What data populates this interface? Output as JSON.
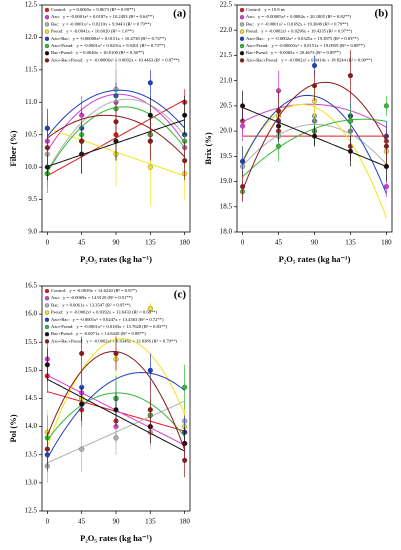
{
  "chart_data": [
    {
      "type": "scatter",
      "panel": "(a)",
      "ylabel": "Fiber (%)",
      "xlabel": "P₂O₅ rates (kg ha⁻¹)",
      "x": [
        0,
        45,
        90,
        135,
        180
      ],
      "xlim": [
        -7,
        187
      ],
      "xticks": [
        0,
        45,
        90,
        135,
        180
      ],
      "ylim": [
        9,
        12.5
      ],
      "yticks": [
        {
          "value": 9,
          "label": "9.0"
        },
        9.5,
        {
          "value": 10,
          "label": "10.0"
        },
        10.5,
        {
          "value": 11,
          "label": "11.0"
        },
        11.5,
        {
          "value": 12,
          "label": "12.0"
        },
        12.5
      ],
      "series": [
        {
          "name": "Control:",
          "equation": "y = 0.0065x + 9.8673 (R² = 0.99**)",
          "fit": [
            0.0065,
            9.8673
          ],
          "color": "#e31a1c",
          "values": [
            9.9,
            10.2,
            10.5,
            10.5,
            11.0
          ],
          "errors": [
            0.2,
            0.3,
            0.4,
            0.3,
            0.2
          ]
        },
        {
          "name": "Azo:",
          "equation": "y = -0.0001x² + 0.0187x + 10.2493 (R² = 0.64**)",
          "fit": [
            -0.0001,
            0.0187,
            10.2493
          ],
          "color": "#d63cd6",
          "values": [
            10.4,
            10.8,
            11.0,
            10.5,
            10.3
          ],
          "errors": [
            0.4,
            0.3,
            0.5,
            0.4,
            0.3
          ]
        },
        {
          "name": "Bac:",
          "equation": "y = -0.0001x² + 0.0210x + 9.9443 (R² = 0.79**)",
          "fit": [
            -0.0001,
            0.021,
            9.9443
          ],
          "color": "#b0b0b0",
          "values": [
            10.2,
            10.4,
            11.2,
            10.4,
            10.5
          ],
          "errors": [
            0.3,
            0.4,
            0.5,
            0.3,
            0.3
          ]
        },
        {
          "name": "Pseud:",
          "equation": "y = -0.0041x + 10.6020 (R² = 1.0**)",
          "fit": [
            -0.0041,
            10.602
          ],
          "color": "#f2e41c",
          "values": [
            10.6,
            10.4,
            10.2,
            10.0,
            9.9
          ],
          "errors": [
            0.3,
            0.4,
            0.5,
            0.6,
            0.4
          ]
        },
        {
          "name": "Azo+Bac:",
          "equation": "y = -0.00008x² + 0.0151x + 10.4738 (R² = 0.74**)",
          "fit": [
            -8e-05,
            0.0151,
            10.4738
          ],
          "color": "#1f3fbf",
          "values": [
            10.6,
            10.6,
            11.1,
            11.3,
            10.5
          ],
          "errors": [
            0.3,
            0.3,
            0.2,
            0.2,
            0.3
          ]
        },
        {
          "name": "Azo+Pseud:",
          "equation": "y = -0.0001x² + 0.0201x + 9.9201 (R² = 0.73**)",
          "fit": [
            -0.0001,
            0.0201,
            9.9201
          ],
          "color": "#33bb33",
          "values": [
            9.9,
            10.5,
            10.9,
            10.5,
            10.4
          ],
          "errors": [
            0.3,
            0.3,
            0.3,
            0.3,
            0.3
          ]
        },
        {
          "name": "Bac+Pseud:",
          "equation": "y = 0.0040x + 10.0100 (R² = 0.36**)",
          "fit": [
            0.004,
            10.01
          ],
          "color": "#111111",
          "values": [
            10.0,
            10.2,
            10.4,
            10.8,
            10.8
          ],
          "errors": [
            0.2,
            0.3,
            0.3,
            0.3,
            0.3
          ]
        },
        {
          "name": "Azo+Bac+Pseud:",
          "equation": "y = -0.00006x² + 0.0092x + 10.4463 (R² = 0.87**)",
          "fit": [
            -6e-05,
            0.0092,
            10.4463
          ],
          "color": "#8b1a1a",
          "values": [
            10.3,
            10.4,
            10.7,
            10.4,
            10.1
          ],
          "errors": [
            0.3,
            0.3,
            0.3,
            0.3,
            0.3
          ]
        }
      ]
    },
    {
      "type": "scatter",
      "panel": "(b)",
      "ylabel": "Brix (%)",
      "xlabel": "P₂O₅ rates (kg ha⁻¹)",
      "x": [
        0,
        45,
        90,
        135,
        180
      ],
      "xlim": [
        -7,
        187
      ],
      "xticks": [
        0,
        45,
        90,
        135,
        180
      ],
      "ylim": [
        18,
        22.5
      ],
      "yticks": [
        {
          "value": 18,
          "label": "18.0"
        },
        18.5,
        {
          "value": 19,
          "label": "19.0"
        },
        19.5,
        {
          "value": 20,
          "label": "20.0"
        },
        20.5,
        {
          "value": 21,
          "label": "21.0"
        },
        21.5,
        {
          "value": 22,
          "label": "22.0"
        },
        22.5
      ],
      "series": [
        {
          "name": "Control:",
          "equation": "y = 19.9 ns",
          "fit": [
            19.9
          ],
          "color": "#e31a1c",
          "values": [
            20.2,
            20.0,
            20.0,
            19.7,
            19.8
          ],
          "errors": [
            0.3,
            0.3,
            0.3,
            0.3,
            0.3
          ]
        },
        {
          "name": "Azo:",
          "equation": "y = -0.00005x² + 0.0084x + 20.1805 (R² = 0.82**)",
          "fit": [
            -5e-05,
            0.0084,
            20.1805
          ],
          "color": "#d63cd6",
          "values": [
            20.1,
            20.8,
            20.2,
            20.0,
            18.9
          ],
          "errors": [
            0.3,
            0.4,
            0.3,
            0.3,
            0.2
          ]
        },
        {
          "name": "Bac:",
          "equation": "y = -0.0001x² + 0.0182x + 19.3049 (R² = 0.79**)",
          "fit": [
            -0.0001,
            0.0182,
            19.3049
          ],
          "color": "#b0b0b0",
          "values": [
            19.3,
            19.9,
            20.3,
            20.2,
            19.3
          ],
          "errors": [
            0.4,
            0.3,
            0.4,
            0.3,
            0.3
          ]
        },
        {
          "name": "Pseud:",
          "equation": "y = -0.0002x² + 0.0296x + 19.4335 (R² = 0.97**)",
          "fit": [
            -0.0002,
            0.0296,
            19.4335
          ],
          "color": "#f2e41c",
          "values": [
            19.4,
            20.3,
            20.6,
            20.3,
            19.6
          ],
          "errors": [
            0.3,
            0.3,
            0.3,
            0.3,
            0.3
          ]
        },
        {
          "name": "Azo+Bac:",
          "equation": "y = -0.0002x² + 0.0325x + 19.3875 (R² = 0.83**)",
          "fit": [
            -0.0002,
            0.0325,
            19.3875
          ],
          "color": "#1f3fbf",
          "values": [
            19.4,
            20.2,
            21.3,
            20.3,
            19.9
          ],
          "errors": [
            0.3,
            0.3,
            0.2,
            0.3,
            0.3
          ]
        },
        {
          "name": "Azo+Pseud:",
          "equation": "y = -0.00005x² + 0.0151x + 19.0959 (R² = 0.88**)",
          "fit": [
            -5e-05,
            0.0151,
            19.0959
          ],
          "color": "#33bb33",
          "values": [
            18.8,
            19.7,
            20.0,
            20.2,
            20.5
          ],
          "errors": [
            0.2,
            0.3,
            0.3,
            0.3,
            0.2
          ]
        },
        {
          "name": "Bac+Pseud:",
          "equation": "y = -0.0065x + 20.4673 (R² = 0.89**)",
          "fit": [
            -0.0065,
            20.4673
          ],
          "color": "#111111",
          "values": [
            20.5,
            20.1,
            19.9,
            19.6,
            19.3
          ],
          "errors": [
            0.3,
            0.3,
            0.2,
            0.3,
            0.3
          ]
        },
        {
          "name": "Azo+Bac+Pseud:",
          "equation": "y = -0.0002x² + 0.0414x + 18.8244 (R² = 0.90**)",
          "fit": [
            -0.0002,
            0.0414,
            18.8244
          ],
          "color": "#8b1a1a",
          "values": [
            18.9,
            20.4,
            20.9,
            21.1,
            19.7
          ],
          "errors": [
            0.3,
            0.4,
            0.3,
            0.5,
            0.3
          ]
        }
      ]
    },
    {
      "type": "scatter",
      "panel": "(c)",
      "ylabel": "Pol (%)",
      "xlabel": "P₂O₅ rates (kg ha⁻¹)",
      "x": [
        0,
        45,
        90,
        135,
        180
      ],
      "xlim": [
        -7,
        187
      ],
      "xticks": [
        0,
        45,
        90,
        135,
        180
      ],
      "ylim": [
        12.5,
        16.5
      ],
      "yticks": [
        12.5,
        {
          "value": 13,
          "label": "13.0"
        },
        13.5,
        {
          "value": 14,
          "label": "14.0"
        },
        14.5,
        {
          "value": 15,
          "label": "15.0"
        },
        15.5,
        {
          "value": 16,
          "label": "16.0"
        },
        16.5
      ],
      "series": [
        {
          "name": "Control:",
          "equation": "y = -0.0039x + 14.6220 (R² = 0.87*)",
          "fit": [
            -0.0039,
            14.622
          ],
          "color": "#e31a1c",
          "values": [
            14.9,
            14.3,
            14.1,
            14.2,
            13.9
          ],
          "errors": [
            0.3,
            0.3,
            0.3,
            0.3,
            0.3
          ]
        },
        {
          "name": "Azo:",
          "equation": "y = -0.0069x + 14.9120 (R² = 0.51**)",
          "fit": [
            -0.0069,
            14.912
          ],
          "color": "#d63cd6",
          "values": [
            15.2,
            14.6,
            14.0,
            14.0,
            13.7
          ],
          "errors": [
            0.3,
            0.4,
            0.3,
            0.3,
            0.3
          ]
        },
        {
          "name": "Bac:",
          "equation": "y = 0.0061x + 13.3547 (R² = 0.95**)",
          "fit": [
            0.0061,
            13.3547
          ],
          "color": "#b0b0b0",
          "values": [
            13.3,
            13.6,
            13.8,
            13.9,
            14.1
          ],
          "errors": [
            0.3,
            0.4,
            0.3,
            0.3,
            0.3
          ]
        },
        {
          "name": "Pseud:",
          "equation": "y = -0.0002x² + 0.0392x + 13.6433 (R² = 0.68**)",
          "fit": [
            -0.0002,
            0.0392,
            13.6433
          ],
          "color": "#f2e41c",
          "values": [
            13.9,
            14.5,
            15.2,
            16.1,
            14.0
          ],
          "errors": [
            0.4,
            0.4,
            0.4,
            0.1,
            0.4
          ]
        },
        {
          "name": "Azo+Bac:",
          "equation": "y = -0.0001x² + 0.0247x + 13.4363 (R² = 0.72**)",
          "fit": [
            -0.0001,
            0.0247,
            13.4363
          ],
          "color": "#1f3fbf",
          "values": [
            13.5,
            14.7,
            14.5,
            15.0,
            13.9
          ],
          "errors": [
            0.3,
            0.3,
            0.3,
            0.3,
            0.3
          ]
        },
        {
          "name": "Azo+Pseud:",
          "equation": "y = -0.0001x² + 0.0183x + 13.7628 (R² = 0.83**)",
          "fit": [
            -0.0001,
            0.0183,
            13.7628
          ],
          "color": "#33bb33",
          "values": [
            13.8,
            14.4,
            14.5,
            14.2,
            14.7
          ],
          "errors": [
            0.4,
            0.4,
            0.4,
            0.3,
            0.4
          ]
        },
        {
          "name": "Bac+Pseud:",
          "equation": "y = -0.0071x + 14.8420 (R² = 0.88**)",
          "fit": [
            -0.0071,
            14.842
          ],
          "color": "#111111",
          "values": [
            15.1,
            14.4,
            14.3,
            14.0,
            13.7
          ],
          "errors": [
            0.3,
            0.3,
            0.3,
            0.3,
            0.3
          ]
        },
        {
          "name": "Azo+Bac+Pseud:",
          "equation": "y = -0.0002x² + 0.0346x + 13.8386 (R² = 0.70**)",
          "fit": [
            -0.0002,
            0.0346,
            13.8386
          ],
          "color": "#8b1a1a",
          "values": [
            13.6,
            15.3,
            15.3,
            14.3,
            13.4
          ],
          "errors": [
            0.3,
            0.3,
            0.3,
            0.5,
            0.3
          ]
        }
      ]
    }
  ]
}
